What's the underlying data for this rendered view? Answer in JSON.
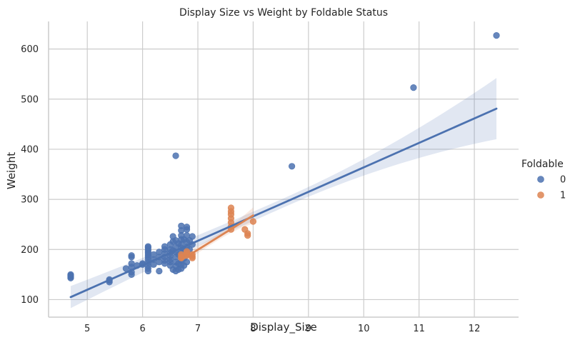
{
  "chart_data": {
    "type": "scatter",
    "title": "Display Size vs Weight by Foldable Status",
    "xlabel": "Display_Size",
    "ylabel": "Weight",
    "xlim": [
      4.3,
      12.8
    ],
    "ylim": [
      65,
      655
    ],
    "x_ticks": [
      5,
      6,
      7,
      8,
      9,
      10,
      11,
      12
    ],
    "y_ticks": [
      100,
      200,
      300,
      400,
      500,
      600
    ],
    "grid": true,
    "legend_title": "Foldable",
    "legend_placement": "right",
    "series": [
      {
        "name": "0",
        "color": "#4c72b0",
        "points": [
          [
            4.7,
            143
          ],
          [
            4.7,
            145
          ],
          [
            4.7,
            147
          ],
          [
            4.7,
            148
          ],
          [
            4.7,
            150
          ],
          [
            5.4,
            135
          ],
          [
            5.4,
            138
          ],
          [
            5.4,
            140
          ],
          [
            5.7,
            162
          ],
          [
            5.8,
            150
          ],
          [
            5.8,
            155
          ],
          [
            5.8,
            165
          ],
          [
            5.8,
            172
          ],
          [
            5.8,
            185
          ],
          [
            5.8,
            188
          ],
          [
            5.9,
            168
          ],
          [
            6.0,
            170
          ],
          [
            6.0,
            172
          ],
          [
            6.1,
            157
          ],
          [
            6.1,
            162
          ],
          [
            6.1,
            168
          ],
          [
            6.1,
            174
          ],
          [
            6.1,
            180
          ],
          [
            6.1,
            185
          ],
          [
            6.1,
            189
          ],
          [
            6.1,
            193
          ],
          [
            6.1,
            197
          ],
          [
            6.1,
            200
          ],
          [
            6.1,
            204
          ],
          [
            6.1,
            206
          ],
          [
            6.2,
            170
          ],
          [
            6.2,
            180
          ],
          [
            6.2,
            190
          ],
          [
            6.3,
            157
          ],
          [
            6.3,
            175
          ],
          [
            6.3,
            185
          ],
          [
            6.3,
            195
          ],
          [
            6.4,
            172
          ],
          [
            6.4,
            178
          ],
          [
            6.4,
            185
          ],
          [
            6.4,
            192
          ],
          [
            6.4,
            200
          ],
          [
            6.4,
            206
          ],
          [
            6.5,
            168
          ],
          [
            6.5,
            175
          ],
          [
            6.5,
            180
          ],
          [
            6.5,
            187
          ],
          [
            6.5,
            193
          ],
          [
            6.5,
            200
          ],
          [
            6.5,
            210
          ],
          [
            6.55,
            160
          ],
          [
            6.55,
            198
          ],
          [
            6.55,
            216
          ],
          [
            6.55,
            226
          ],
          [
            6.6,
            157
          ],
          [
            6.6,
            167
          ],
          [
            6.6,
            175
          ],
          [
            6.6,
            185
          ],
          [
            6.6,
            195
          ],
          [
            6.6,
            205
          ],
          [
            6.6,
            218
          ],
          [
            6.6,
            387
          ],
          [
            6.65,
            160
          ],
          [
            6.65,
            172
          ],
          [
            6.65,
            190
          ],
          [
            6.65,
            212
          ],
          [
            6.7,
            162
          ],
          [
            6.7,
            170
          ],
          [
            6.7,
            178
          ],
          [
            6.7,
            185
          ],
          [
            6.7,
            194
          ],
          [
            6.7,
            203
          ],
          [
            6.7,
            210
          ],
          [
            6.7,
            220
          ],
          [
            6.7,
            228
          ],
          [
            6.7,
            238
          ],
          [
            6.7,
            247
          ],
          [
            6.75,
            168
          ],
          [
            6.75,
            182
          ],
          [
            6.75,
            200
          ],
          [
            6.75,
            220
          ],
          [
            6.8,
            175
          ],
          [
            6.8,
            190
          ],
          [
            6.8,
            205
          ],
          [
            6.8,
            215
          ],
          [
            6.8,
            228
          ],
          [
            6.8,
            240
          ],
          [
            6.8,
            245
          ],
          [
            6.85,
            200
          ],
          [
            6.85,
            218
          ],
          [
            6.9,
            210
          ],
          [
            6.9,
            226
          ],
          [
            8.7,
            366
          ],
          [
            10.9,
            523
          ],
          [
            12.4,
            627
          ]
        ],
        "fit": {
          "x": [
            4.7,
            12.4
          ],
          "y": [
            105,
            481
          ]
        }
      },
      {
        "name": "1",
        "color": "#dd8452",
        "points": [
          [
            6.7,
            183
          ],
          [
            6.7,
            186
          ],
          [
            6.7,
            190
          ],
          [
            6.8,
            188
          ],
          [
            6.8,
            192
          ],
          [
            6.8,
            196
          ],
          [
            6.9,
            183
          ],
          [
            6.9,
            186
          ],
          [
            6.9,
            190
          ],
          [
            7.6,
            240
          ],
          [
            7.6,
            246
          ],
          [
            7.6,
            254
          ],
          [
            7.6,
            262
          ],
          [
            7.6,
            270
          ],
          [
            7.6,
            276
          ],
          [
            7.6,
            283
          ],
          [
            7.85,
            240
          ],
          [
            7.9,
            228
          ],
          [
            7.9,
            232
          ],
          [
            8.0,
            256
          ]
        ],
        "fit": {
          "x": [
            6.7,
            8.0
          ],
          "y": [
            179,
            268
          ]
        }
      }
    ]
  }
}
